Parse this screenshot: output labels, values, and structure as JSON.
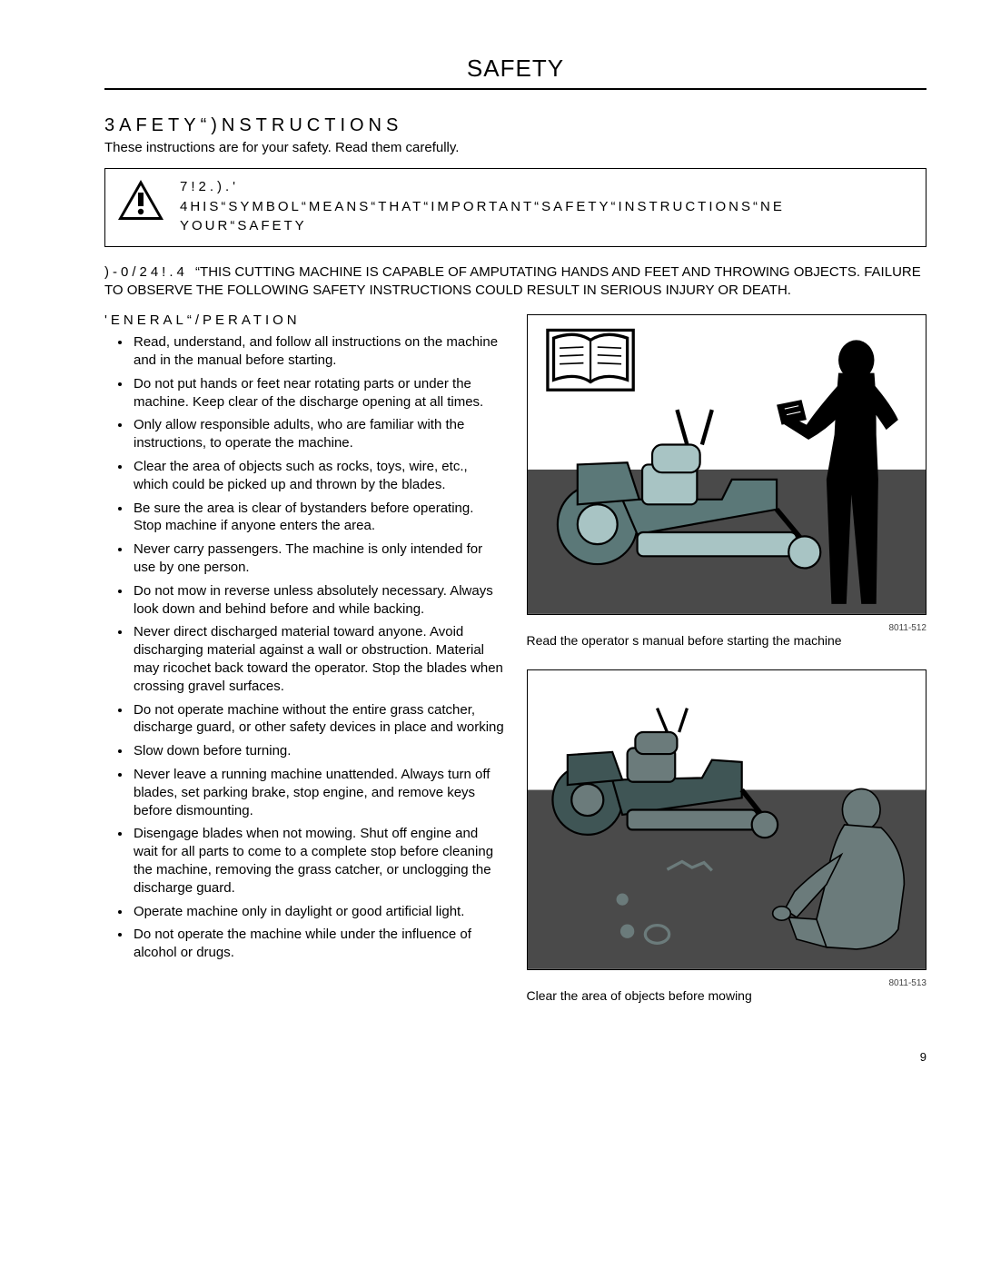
{
  "page": {
    "title": "SAFETY",
    "number": "9"
  },
  "section": {
    "heading": "3AFETY“)NSTRUCTIONS",
    "sub": "These instructions are for your safety. Read them carefully."
  },
  "warning": {
    "label": "7!2.).'",
    "line1": "4HIS“SYMBOL“MEANS“THAT“IMPORTANT“SAFETY“INSTRUCTIONS“NE",
    "line2": "YOUR“SAFETY"
  },
  "important": {
    "label": ")-0/24!.4 ",
    "text": "“THIS CUTTING MACHINE IS CAPABLE OF AMPUTATING HANDS AND FEET AND THROWING OBJECTS. FAILURE TO OBSERVE THE FOLLOWING SAFETY INSTRUCTIONS COULD RESULT IN SERIOUS INJURY OR DEATH."
  },
  "general": {
    "heading": "'ENERAL“/PERATION",
    "bullets": [
      "Read, understand, and follow all instructions on the machine and in the manual before starting.",
      "Do not put hands or feet near rotating parts or under the machine. Keep clear of the discharge opening at all times.",
      "Only allow responsible adults, who are familiar with the instructions, to operate the machine.",
      "Clear the area of objects such as rocks, toys, wire, etc., which could be picked up and thrown by the blades.",
      "Be sure the area is clear of bystanders before operating. Stop machine if anyone enters the area.",
      "Never carry passengers. The machine is only intended for use by one person.",
      "Do not mow in reverse unless absolutely necessary. Always look down and behind before and while backing.",
      "Never direct discharged material toward anyone. Avoid discharging material against a wall or obstruction. Material may ricochet back toward the operator. Stop the blades when crossing gravel surfaces.",
      "Do not operate machine without the entire grass catcher, discharge guard, or other safety devices in place and working",
      "Slow down before turning.",
      "Never leave a running machine unattended. Always turn off blades, set parking brake, stop engine, and remove keys before dismounting.",
      "Disengage blades when not mowing. Shut off engine and wait for all parts to come to a complete stop before cleaning the machine, removing the grass catcher, or unclogging the discharge guard.",
      "Operate machine only in daylight or good artificial light.",
      "Do not operate the machine while under the influence of alcohol or drugs."
    ]
  },
  "figures": {
    "fig1": {
      "ref": "8011-512",
      "caption": "Read the operator s manual before starting the machine"
    },
    "fig2": {
      "ref": "8011-513",
      "caption": "Clear the area of objects before mowing"
    }
  },
  "colors": {
    "mower_body": "#5b7878",
    "mower_light": "#a8c4c4",
    "ground_dark": "#4a4a4a",
    "person_gray": "#6b7b7b"
  }
}
